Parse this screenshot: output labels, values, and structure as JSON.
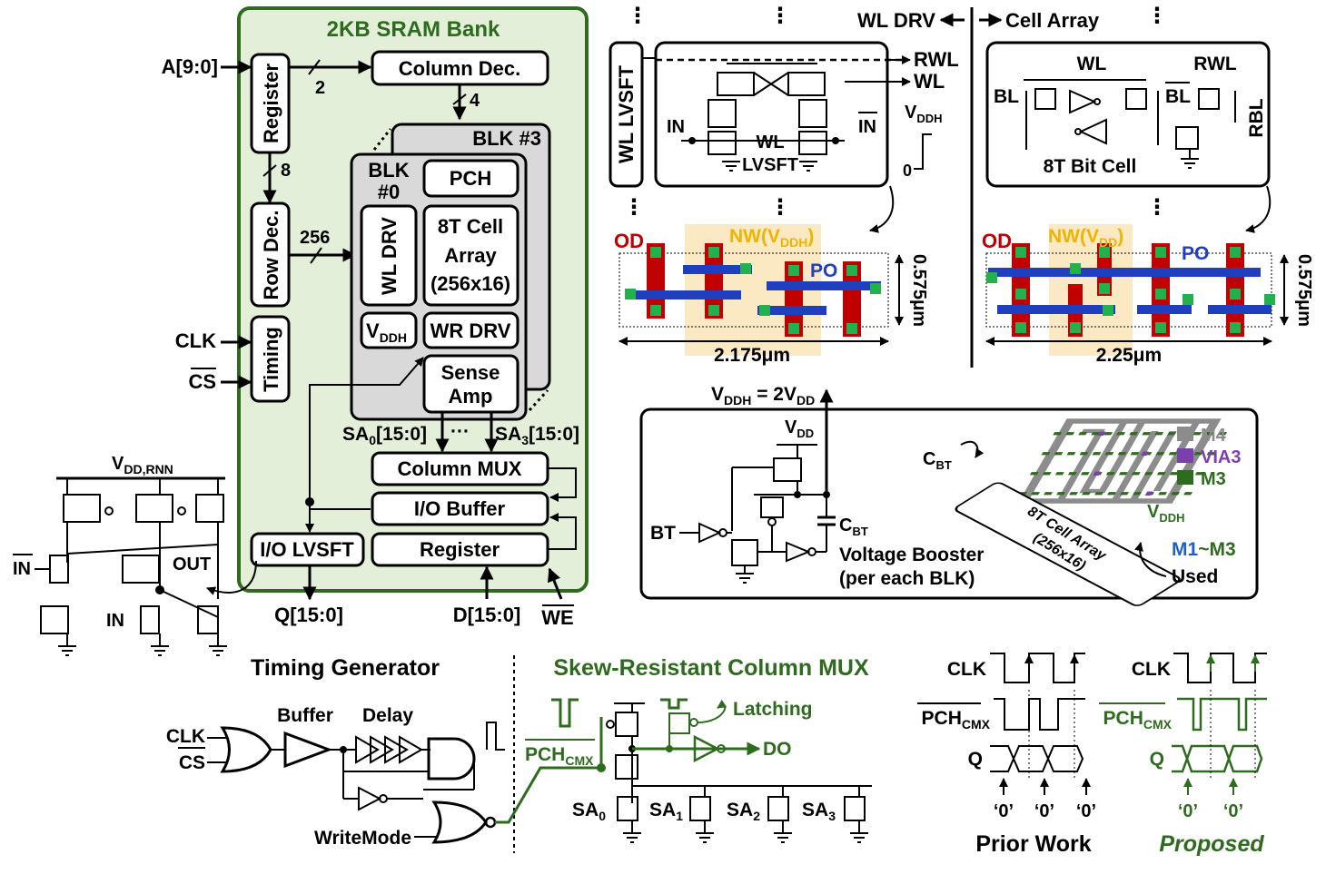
{
  "bank": {
    "title": "2KB SRAM Bank",
    "addr_in": "A[9:0]",
    "register": "Register",
    "column_dec": "Column Dec.",
    "bus2": "2",
    "bus4": "4",
    "bus8": "8",
    "bus256": "256",
    "row_dec": "Row Dec.",
    "timing": "Timing",
    "clk": "CLK",
    "cs": "CS",
    "blk3": "BLK #3",
    "blk0": "BLK",
    "blk0_num": "#0",
    "pch": "PCH",
    "wl_drv": "WL DRV",
    "cell_array": [
      "8T Cell",
      "Array",
      "(256x16)"
    ],
    "vddh": "V",
    "vddh_sub": "DDH",
    "wr_drv": "WR DRV",
    "sense_amp": [
      "Sense",
      "Amp"
    ],
    "sa0": "SA",
    "sa0_sub": "0",
    "sa0_bus": "[15:0]",
    "sa_dots": "···",
    "sa3": "SA",
    "sa3_sub": "3",
    "sa3_bus": "[15:0]",
    "column_mux": "Column MUX",
    "io_buffer": "I/O Buffer",
    "io_lvsft": "I/O LVSFT",
    "register2": "Register",
    "q_out": "Q[15:0]",
    "d_in": "D[15:0]",
    "we": "WE"
  },
  "lvsft": {
    "supply": "V",
    "supply_sub": "DD,RNN",
    "in_bar": "IN",
    "out": "OUT",
    "in": "IN"
  },
  "wl_panel": {
    "wl_lvsft_vertical": "WL LVSFT",
    "wl_drv_label": "WL DRV",
    "cell_array_label": "Cell Array",
    "rwl": "RWL",
    "wl": "WL",
    "in": "IN",
    "in_bar": "IN",
    "inner_label": [
      "WL",
      "LVSFT"
    ],
    "vddh": "V",
    "vddh_sub": "DDH",
    "zero": "0"
  },
  "bitcell": {
    "wl": "WL",
    "rwl": "RWL",
    "bl": "BL",
    "bl_bar": "BL",
    "rbl": "RBL",
    "label": "8T Bit Cell"
  },
  "layout_left": {
    "od": "OD",
    "nw": "NW(V",
    "nw_sub": "DDH",
    "nw_end": ")",
    "po": "PO",
    "height": "0.575μm",
    "width": "2.175μm"
  },
  "layout_right": {
    "od": "OD",
    "nw": "NW(V",
    "nw_sub": "DD",
    "nw_end": ")",
    "po": "PO",
    "height": "0.575μm",
    "width": "2.25μm"
  },
  "booster": {
    "vddh_eq": "V",
    "vddh_eq_sub": "DDH",
    "vddh_eq_mid": " = 2V",
    "vddh_eq_sub2": "DD",
    "vdd": "V",
    "vdd_sub": "DD",
    "bt": "BT",
    "cbt": "C",
    "cbt_sub": "BT",
    "cbt2": "C",
    "cbt2_sub": "BT",
    "caption": [
      "Voltage Booster",
      "(per each BLK)"
    ],
    "legend": [
      "M4",
      "VIA3",
      "M3"
    ],
    "legend_colors": [
      "#8c8c8c",
      "#7b3fb0",
      "#2e6b1e"
    ],
    "array_label": [
      "8T Cell Array",
      "(256x16)"
    ],
    "vddh_label": "V",
    "vddh_label_sub": "DDH",
    "m1": "M1",
    "m3": "~M3",
    "used": "Used"
  },
  "timing_gen": {
    "title": "Timing Generator",
    "buffer": "Buffer",
    "delay": "Delay",
    "clk": "CLK",
    "cs": "CS",
    "writemode": "WriteMode"
  },
  "colmux": {
    "title": "Skew-Resistant Column MUX",
    "latching": "Latching",
    "pch": "PCH",
    "pch_sub": "CMX",
    "do": "DO",
    "sa": [
      "SA",
      "SA",
      "SA",
      "SA"
    ],
    "sa_sub": [
      "0",
      "1",
      "2",
      "3"
    ]
  },
  "waveforms": {
    "clk": "CLK",
    "pch": "PCH",
    "pch_sub": "CMX",
    "q": "Q",
    "zero": "‘0’",
    "prior": "Prior Work",
    "proposed": "Proposed"
  },
  "colors": {
    "bank_fill": "#e3efd9",
    "bank_border": "#2e6b1e",
    "blk_fill": "#d9d9d9",
    "od_red": "#c00000",
    "po_blue": "#1f3fbf",
    "contact_green": "#22b14c",
    "nw_fill": "#fbe9c4",
    "title_green": "#2e6b1e",
    "nw_text": "#f0b400",
    "od_text": "#c00000"
  }
}
